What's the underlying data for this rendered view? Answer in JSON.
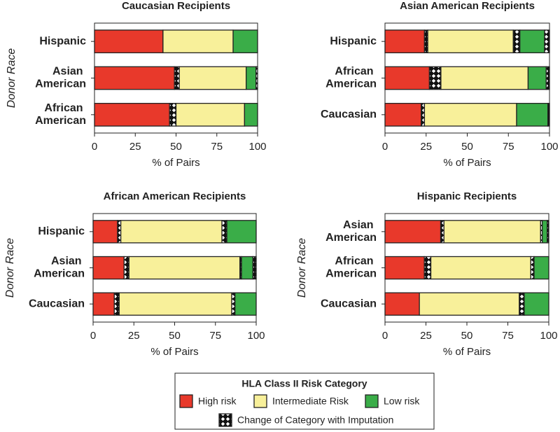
{
  "chart_data": [
    {
      "type": "stacked-barh",
      "title": "Caucasian Recipients",
      "xlabel": "% of Pairs",
      "ylabel": "Donor Race",
      "categories": [
        "Hispanic",
        "Asian American",
        "African American"
      ],
      "series": [
        {
          "name": "High risk",
          "color": "#e8392b",
          "values": [
            42,
            49,
            46
          ],
          "imputation": [
            0,
            3,
            4
          ]
        },
        {
          "name": "Intermediate Risk",
          "color": "#f8f09a",
          "values": [
            43,
            41,
            42
          ],
          "imputation": [
            0,
            0,
            0
          ]
        },
        {
          "name": "Low risk",
          "color": "#3aad48",
          "values": [
            15,
            6,
            8
          ],
          "imputation": [
            0,
            1,
            0
          ]
        }
      ],
      "xlim": [
        0,
        100
      ],
      "xticks": [
        0,
        25,
        50,
        75,
        100
      ]
    },
    {
      "type": "stacked-barh",
      "title": "Asian American Recipients",
      "xlabel": "% of Pairs",
      "categories": [
        "Hispanic",
        "African American",
        "Caucasian"
      ],
      "series": [
        {
          "name": "High risk",
          "color": "#e8392b",
          "values": [
            24,
            27,
            22
          ],
          "imputation": [
            2,
            7,
            2
          ]
        },
        {
          "name": "Intermediate Risk",
          "color": "#f8f09a",
          "values": [
            52,
            53,
            56
          ],
          "imputation": [
            4,
            0,
            0
          ]
        },
        {
          "name": "Low risk",
          "color": "#3aad48",
          "values": [
            15,
            11,
            19
          ],
          "imputation": [
            3,
            2,
            1
          ]
        }
      ],
      "xlim": [
        0,
        100
      ],
      "xticks": [
        0,
        25,
        50,
        75,
        100
      ]
    },
    {
      "type": "stacked-barh",
      "title": "African American Recipients",
      "xlabel": "% of Pairs",
      "ylabel": "Donor Race",
      "categories": [
        "Hispanic",
        "Asian American",
        "Caucasian"
      ],
      "series": [
        {
          "name": "High risk",
          "color": "#e8392b",
          "values": [
            15,
            19,
            13
          ],
          "imputation": [
            2,
            3,
            3
          ]
        },
        {
          "name": "Intermediate Risk",
          "color": "#f8f09a",
          "values": [
            62,
            68,
            69
          ],
          "imputation": [
            3,
            1,
            2
          ]
        },
        {
          "name": "Low risk",
          "color": "#3aad48",
          "values": [
            18,
            7,
            13
          ],
          "imputation": [
            0,
            2,
            0
          ]
        }
      ],
      "xlim": [
        0,
        100
      ],
      "xticks": [
        0,
        25,
        50,
        75,
        100
      ]
    },
    {
      "type": "stacked-barh",
      "title": "Hispanic Recipients",
      "xlabel": "% of Pairs",
      "ylabel": "Donor Race",
      "categories": [
        "Asian American",
        "African American",
        "Caucasian"
      ],
      "series": [
        {
          "name": "High risk",
          "color": "#e8392b",
          "values": [
            34,
            24,
            21
          ],
          "imputation": [
            2,
            4,
            0
          ]
        },
        {
          "name": "Intermediate Risk",
          "color": "#f8f09a",
          "values": [
            59,
            61,
            61
          ],
          "imputation": [
            1,
            2,
            3
          ]
        },
        {
          "name": "Low risk",
          "color": "#3aad48",
          "values": [
            3,
            9,
            15
          ],
          "imputation": [
            1,
            0,
            0
          ]
        }
      ],
      "xlim": [
        0,
        100
      ],
      "xticks": [
        0,
        25,
        50,
        75,
        100
      ]
    }
  ],
  "legend": {
    "title": "HLA Class II Risk Category",
    "imputation": "Change of Category with Imputation"
  }
}
